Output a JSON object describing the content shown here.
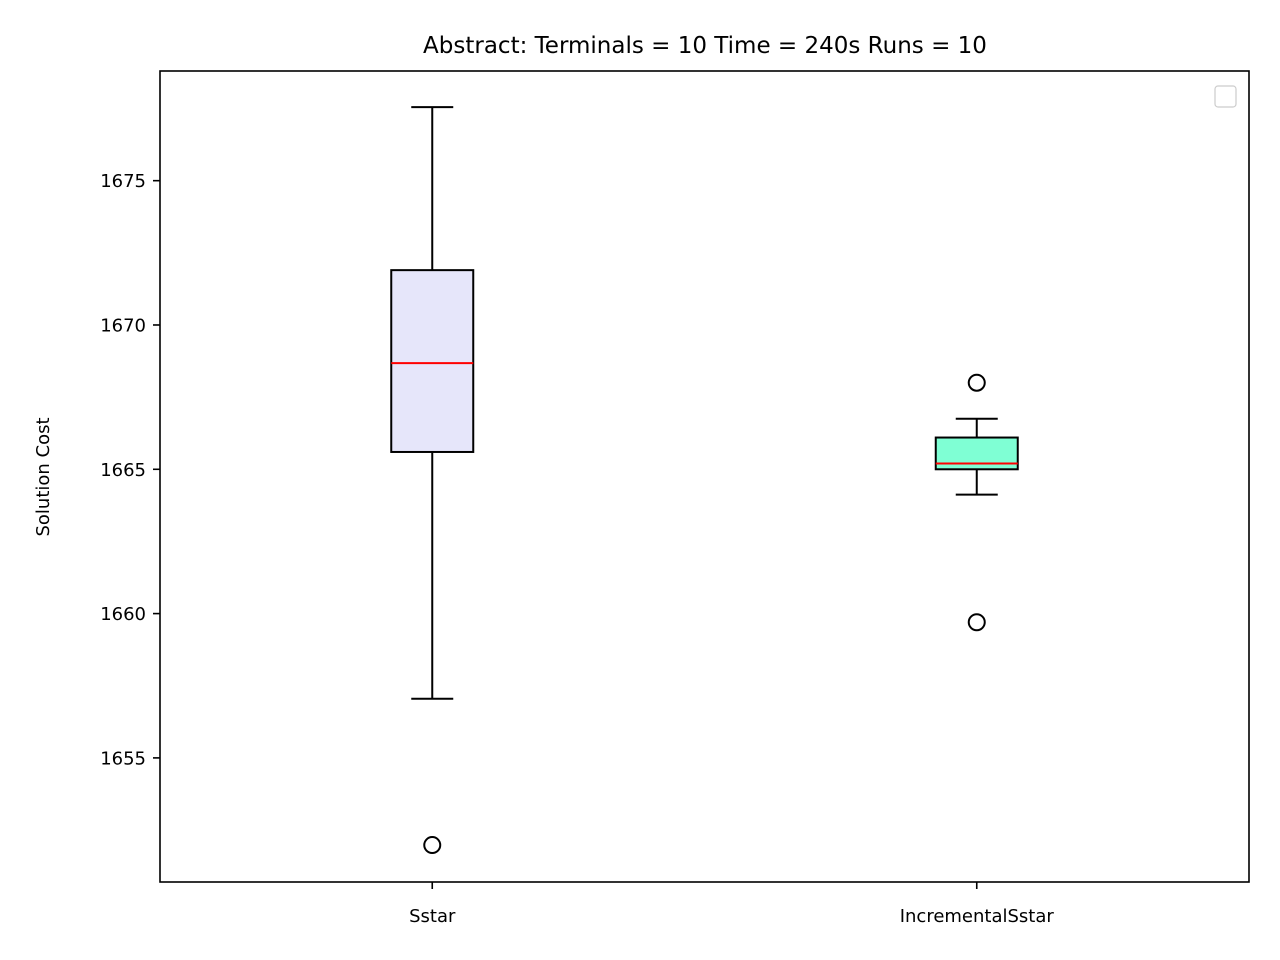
{
  "chart_data": {
    "type": "boxplot",
    "title": "Abstract:  Terminals = 10  Time = 240s  Runs = 10",
    "xlabel": "",
    "ylabel": "Solution Cost",
    "ylim": [
      1650.7,
      1678.8
    ],
    "yticks": [
      1655,
      1660,
      1665,
      1670,
      1675
    ],
    "grid": false,
    "legend": {
      "placement": "upper right",
      "entries": []
    },
    "categories": [
      "Sstar",
      "IncrementalSstar"
    ],
    "boxes": [
      {
        "label": "Sstar",
        "whisker_low": 1657.05,
        "q1": 1665.6,
        "median": 1668.68,
        "q3": 1671.9,
        "whisker_high": 1677.55,
        "outliers": [
          1651.98
        ],
        "fill": "#e6e6fa",
        "median_color": "#ff0000"
      },
      {
        "label": "IncrementalSstar",
        "whisker_low": 1664.12,
        "q1": 1665.0,
        "median": 1665.2,
        "q3": 1666.1,
        "whisker_high": 1666.75,
        "outliers": [
          1668.0,
          1659.7
        ],
        "fill": "#7fffd4",
        "median_color": "#ff0000"
      }
    ]
  }
}
